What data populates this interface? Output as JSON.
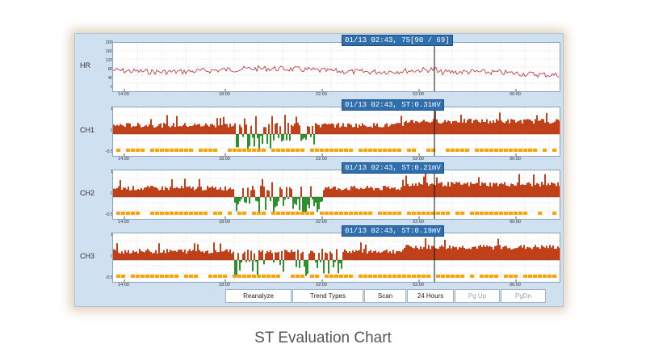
{
  "caption": "ST Evaluation Chart",
  "time_labels": [
    "14:00",
    "18:00",
    "22:00",
    "02:00",
    "06:00"
  ],
  "cursor_time_fraction": 0.72,
  "colors": {
    "hr_line": "#c4262e",
    "st_positive": "#c0401a",
    "st_negative": "#2f8f2f",
    "event_bar": "#f2a31b",
    "readout_bg": "#2f6fae",
    "panel_bg": "#cfe0f1"
  },
  "channels": [
    {
      "label": "HR",
      "readout": "01/13 02:43, 75[90 / 69]",
      "y_ticks": [
        "200",
        "160",
        "120",
        "80",
        "40",
        "0"
      ],
      "kind": "hr",
      "hr_level": 85
    },
    {
      "label": "CH1",
      "readout": "01/13 02:43, ST:0.31mV",
      "y_ticks": [
        "1",
        "0",
        "-0.5"
      ],
      "kind": "st"
    },
    {
      "label": "CH2",
      "readout": "01/13 02:43, ST:0.21mV",
      "y_ticks": [
        "1",
        "0",
        "-0.5"
      ],
      "kind": "st"
    },
    {
      "label": "CH3",
      "readout": "01/13 02:43, ST:0.19mV",
      "y_ticks": [
        "1",
        "0",
        "-0.5"
      ],
      "kind": "st"
    }
  ],
  "toolbar": [
    {
      "label": "Reanalyze",
      "enabled": true
    },
    {
      "label": "Trend Types",
      "enabled": true
    },
    {
      "label": "Scan",
      "enabled": true
    },
    {
      "label": "24 Hours",
      "enabled": true
    },
    {
      "label": "Pg Up",
      "enabled": false
    },
    {
      "label": "PgDn",
      "enabled": false
    }
  ]
}
